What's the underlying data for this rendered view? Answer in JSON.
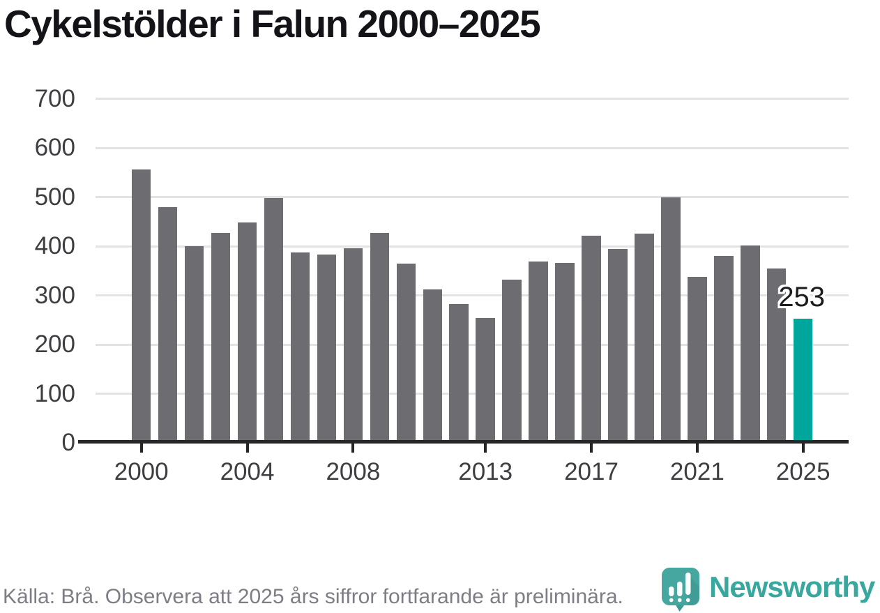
{
  "title": "Cykelstölder i Falun 2000–2025",
  "chart_data": {
    "type": "bar",
    "title": "Cykelstölder i Falun 2000–2025",
    "categories": [
      2000,
      2001,
      2002,
      2003,
      2004,
      2005,
      2006,
      2007,
      2008,
      2009,
      2010,
      2011,
      2012,
      2013,
      2014,
      2015,
      2016,
      2017,
      2018,
      2019,
      2020,
      2021,
      2022,
      2023,
      2024,
      2025
    ],
    "values": [
      556,
      480,
      401,
      427,
      449,
      498,
      388,
      383,
      396,
      427,
      365,
      312,
      282,
      254,
      332,
      369,
      367,
      422,
      395,
      426,
      500,
      338,
      380,
      402,
      355,
      253
    ],
    "xlabel": "",
    "ylabel": "",
    "ylim": [
      0,
      700
    ],
    "yticks": [
      0,
      100,
      200,
      300,
      400,
      500,
      600,
      700
    ],
    "xticks": [
      2000,
      2004,
      2008,
      2013,
      2017,
      2021,
      2025
    ],
    "grid": "horizontal-only",
    "legend": "none",
    "bar_color": "#6d6c71",
    "highlight": {
      "category": 2025,
      "color": "#00a59c",
      "value_label": "253"
    }
  },
  "footer": {
    "source_note": "Källa: Brå. Observera att 2025 års siffror fortfarande är preliminära."
  },
  "branding": {
    "wordmark": "Newsworthy",
    "logo_icon": "newsworthy-speech-bubble-bar-chart-icon",
    "accent_color": "#38a79e"
  }
}
